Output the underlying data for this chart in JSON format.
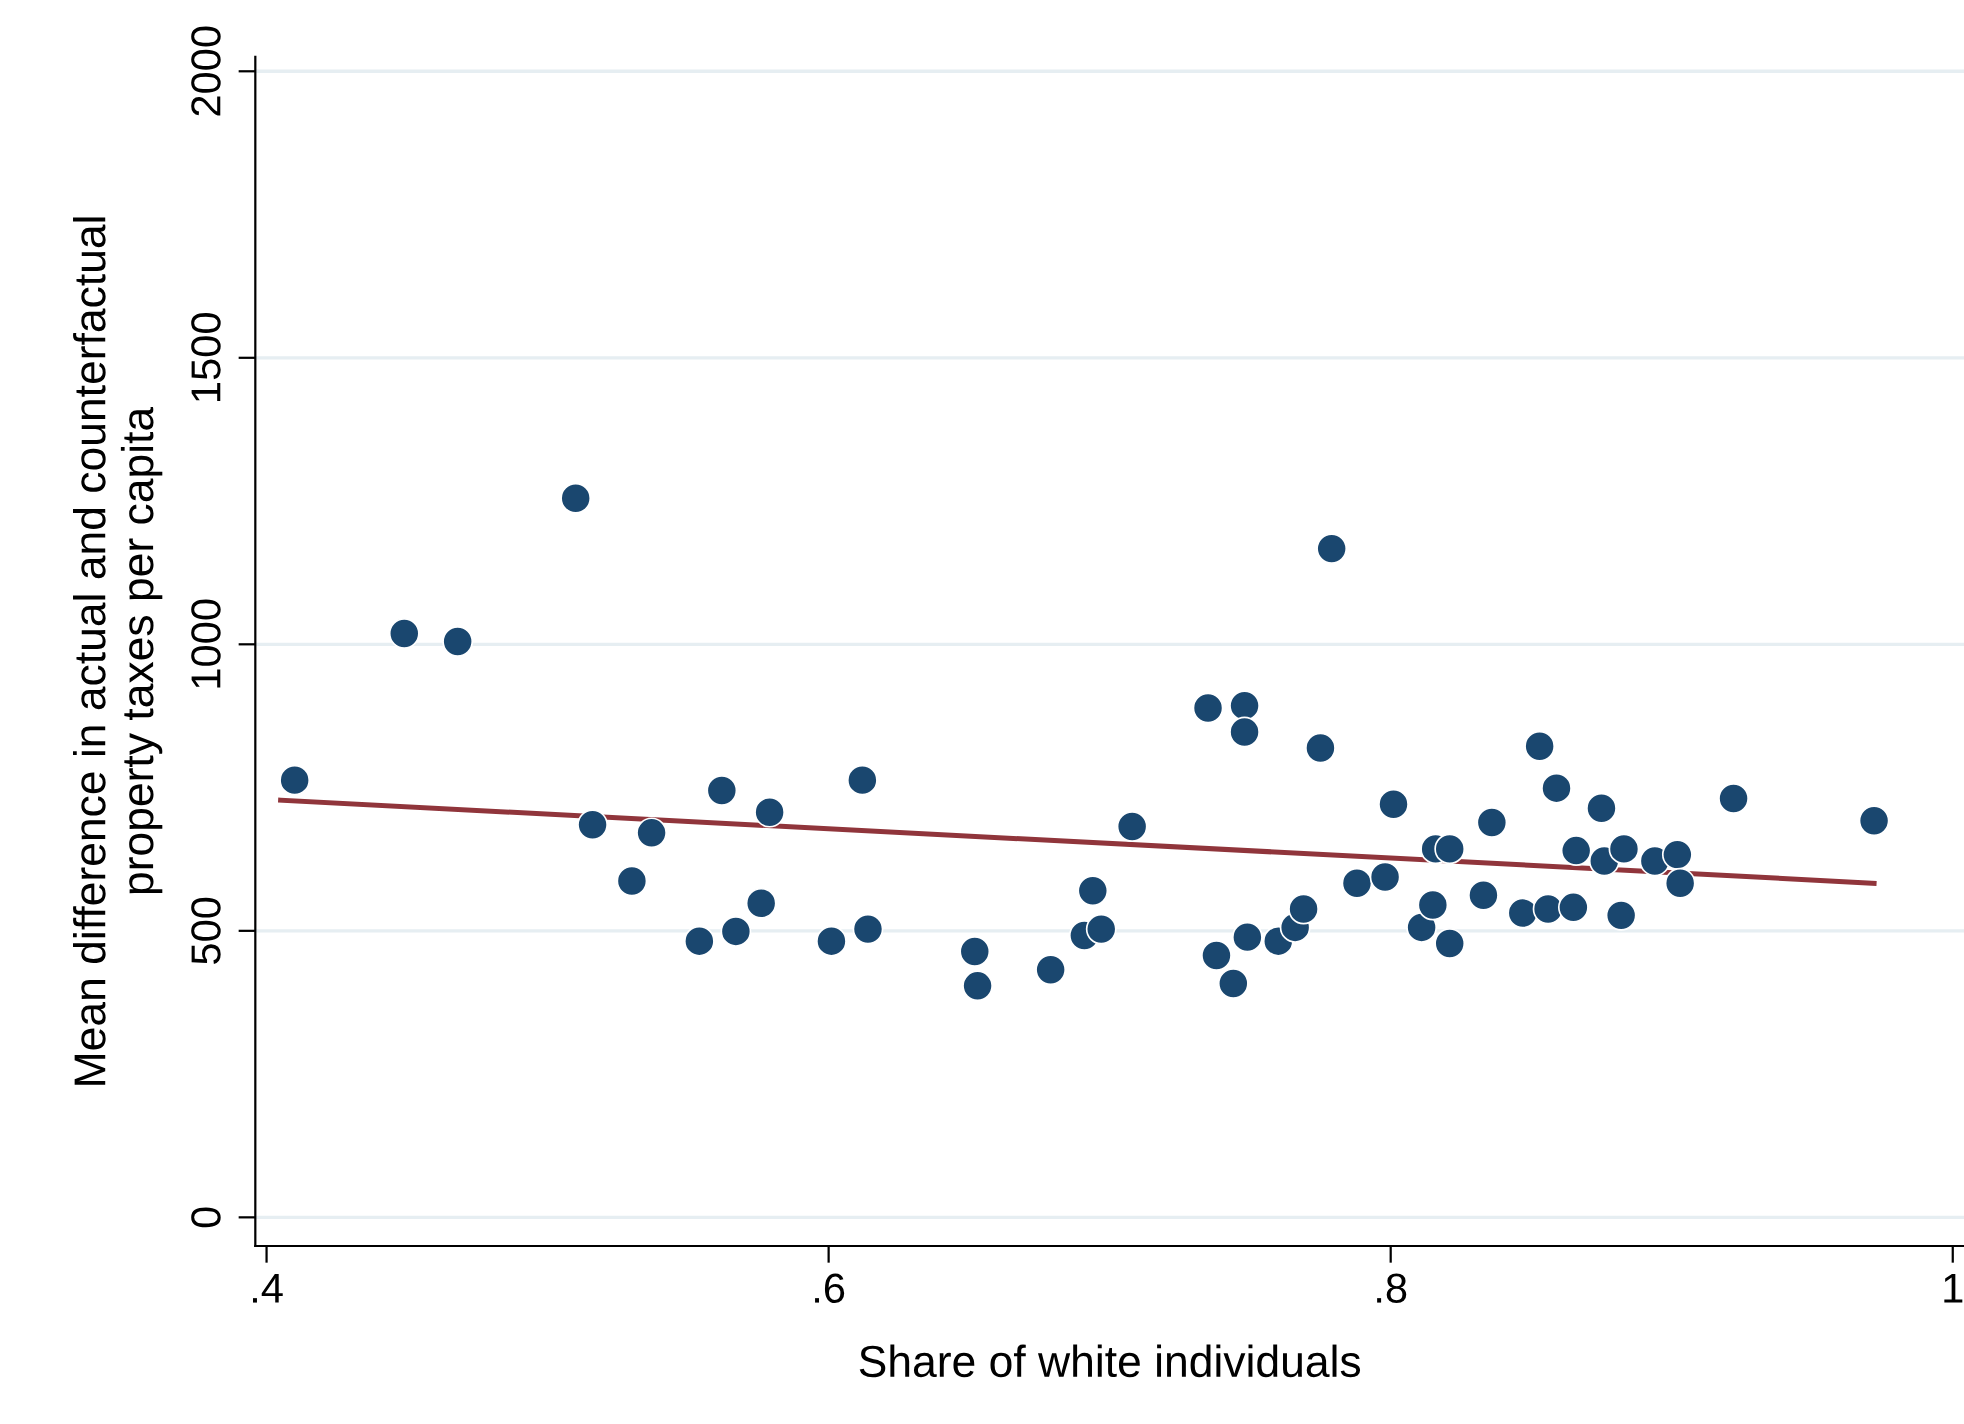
{
  "chart_data": {
    "type": "scatter",
    "xlabel": "Share of white individuals",
    "ylabel": "Mean difference in actual and counterfactual\nproperty taxes per capita",
    "xlim": [
      0.396,
      1.004
    ],
    "xticks": [
      {
        "value": 0.4,
        "label": ".4"
      },
      {
        "value": 0.6,
        "label": ".6"
      },
      {
        "value": 0.8,
        "label": ".8"
      },
      1
    ],
    "ylim": [
      -50,
      2025
    ],
    "yticks": [
      0,
      500,
      1000,
      1500,
      2000
    ],
    "grid": "y",
    "marker": "circle",
    "legend": false,
    "series": [
      {
        "color": "#1a476f",
        "x": [
          0.41,
          0.449,
          0.468,
          0.51,
          0.516,
          0.537,
          0.53,
          0.562,
          0.579,
          0.612,
          0.554,
          0.567,
          0.576,
          0.601,
          0.614,
          0.652,
          0.653,
          0.679,
          0.691,
          0.697,
          0.694,
          0.708,
          0.735,
          0.738,
          0.744,
          0.748,
          0.748,
          0.749,
          0.76,
          0.766,
          0.769,
          0.775,
          0.779,
          0.788,
          0.798,
          0.801,
          0.811,
          0.815,
          0.816,
          0.821,
          0.821,
          0.833,
          0.836,
          0.847,
          0.853,
          0.856,
          0.859,
          0.865,
          0.866,
          0.875,
          0.876,
          0.882,
          0.883,
          0.894,
          0.902,
          0.903,
          0.922,
          0.972
        ],
        "values": [
          763,
          1019,
          1005,
          1255,
          685,
          671,
          587,
          745,
          707,
          763,
          482,
          499,
          548,
          482,
          503,
          464,
          404,
          432,
          492,
          503,
          570,
          682,
          889,
          457,
          408,
          893,
          847,
          489,
          482,
          506,
          538,
          819,
          1167,
          583,
          594,
          721,
          506,
          545,
          643,
          643,
          478,
          562,
          689,
          531,
          822,
          538,
          749,
          541,
          640,
          714,
          622,
          527,
          643,
          622,
          633,
          583,
          731,
          692
        ]
      },
      {
        "type": "line",
        "color": "#90353b",
        "marker": "none",
        "x": [
          0.405,
          0.972
        ],
        "values": [
          728,
          583
        ]
      }
    ]
  }
}
